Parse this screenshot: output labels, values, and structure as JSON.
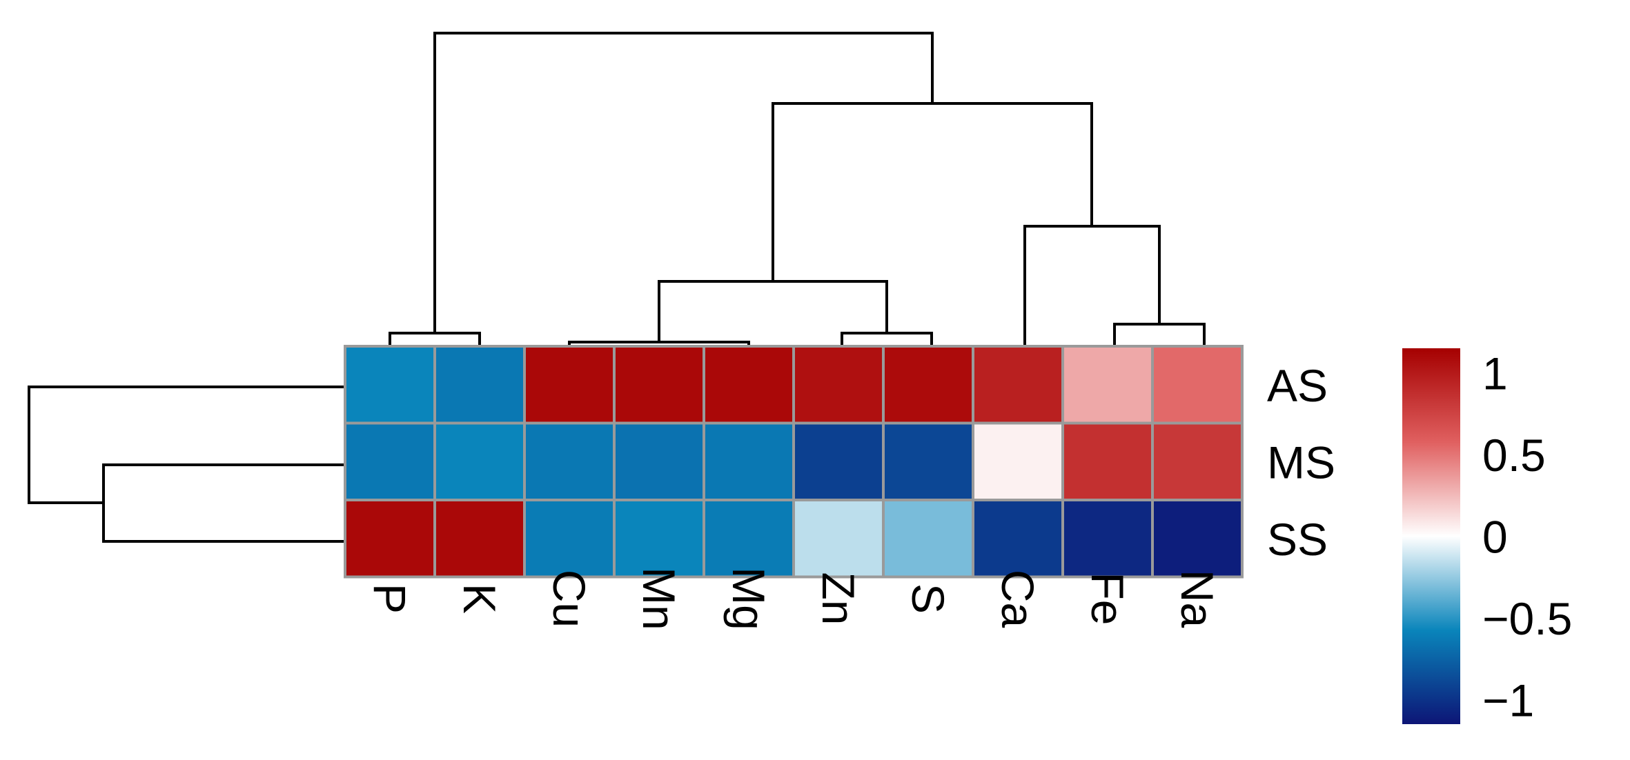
{
  "chart_data": {
    "type": "heatmap",
    "title": "",
    "xlabel": "",
    "ylabel": "",
    "columns": [
      "P",
      "K",
      "Cu",
      "Mn",
      "Mg",
      "Zn",
      "S",
      "Ca",
      "Fe",
      "Na"
    ],
    "rows": [
      "AS",
      "MS",
      "SS"
    ],
    "values": [
      [
        -0.55,
        -0.62,
        1.1,
        1.1,
        1.1,
        1.05,
        1.08,
        0.95,
        0.3,
        0.52
      ],
      [
        -0.62,
        -0.55,
        -0.62,
        -0.65,
        -0.62,
        -0.92,
        -0.88,
        0.05,
        0.85,
        0.8
      ],
      [
        1.1,
        1.1,
        -0.6,
        -0.55,
        -0.6,
        -0.15,
        -0.3,
        -0.95,
        -1.05,
        -1.1
      ]
    ],
    "colorbar": {
      "range": [
        -1.15,
        1.15
      ],
      "ticks": [
        1,
        0.5,
        0,
        -0.5,
        -1
      ],
      "tick_labels": [
        "1",
        "0.5",
        "0",
        "−0.5",
        "−1"
      ],
      "colors": {
        "low": "#0d1576",
        "mid_low": "#0a85bb",
        "zero": "#ffffff",
        "mid_high": "#e06060",
        "high": "#a50000"
      }
    },
    "column_dendrogram": true,
    "row_dendrogram": true,
    "legend_position": "right"
  }
}
